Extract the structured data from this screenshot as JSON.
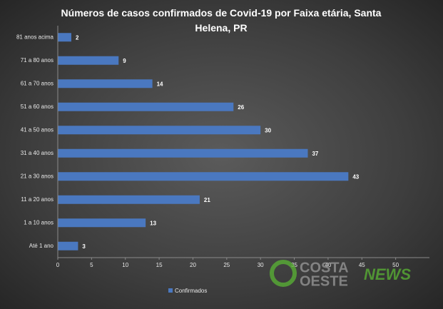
{
  "chart_data": {
    "type": "bar",
    "orientation": "horizontal",
    "title": "Números de casos confirmados  de Covid-19 por Faixa etária, Santa Helena, PR",
    "categories": [
      "81 anos acima",
      "71 a 80 anos",
      "61 a 70 anos",
      "51 a 60 anos",
      "41 a 50 anos",
      "31 a 40 anos",
      "21 a 30 anos",
      "11 a 20 anos",
      "1  a 10 anos",
      "Até 1 ano"
    ],
    "series": [
      {
        "name": "Confirmados",
        "color": "#4a78c0",
        "values": [
          2,
          9,
          14,
          26,
          30,
          37,
          43,
          21,
          13,
          3
        ]
      }
    ],
    "xlim": [
      0,
      55
    ],
    "xticks": [
      0,
      5,
      10,
      15,
      20,
      25,
      30,
      35,
      40,
      45,
      50
    ],
    "legend": "bottom",
    "watermark": {
      "line1": "COSTA",
      "line2": "OESTE",
      "brand": "NEWS"
    }
  }
}
